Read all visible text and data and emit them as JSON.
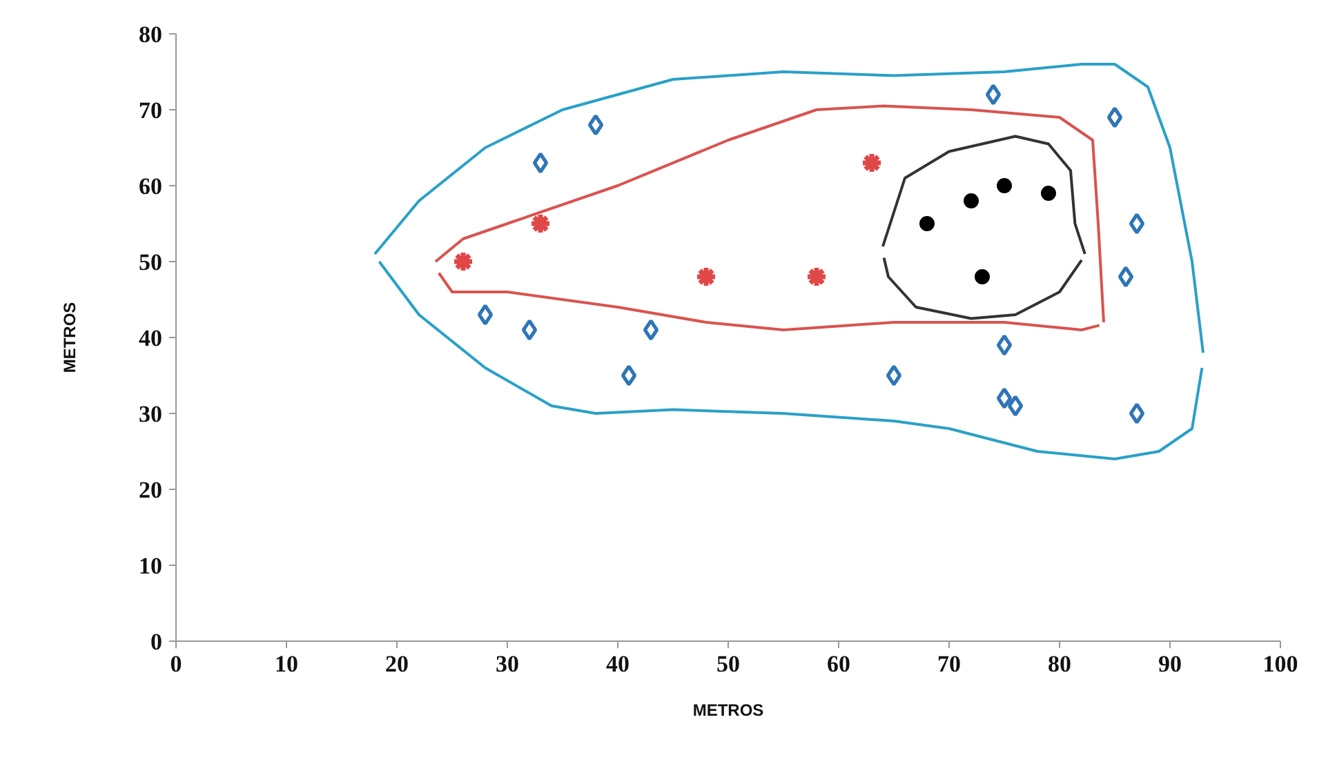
{
  "chart_data": {
    "type": "scatter",
    "xlabel": "METROS",
    "ylabel": "METROS",
    "xlim": [
      0,
      100
    ],
    "ylim": [
      0,
      80
    ],
    "xticks": [
      0,
      10,
      20,
      30,
      40,
      50,
      60,
      70,
      80,
      90,
      100
    ],
    "yticks": [
      0,
      10,
      20,
      30,
      40,
      50,
      60,
      70,
      80
    ],
    "grid": false,
    "series": [
      {
        "type": "line",
        "color": "#2aa0c8",
        "marker": "none",
        "x": [
          18,
          22,
          28,
          35,
          45,
          55,
          65,
          75,
          82,
          85,
          88,
          90,
          92,
          93
        ],
        "values": [
          51,
          58,
          65,
          70,
          74,
          75,
          74.5,
          75,
          76,
          76,
          73,
          65,
          50,
          38
        ]
      },
      {
        "type": "line",
        "color": "#2aa0c8",
        "marker": "none",
        "x": [
          18.4,
          22,
          28,
          34,
          38,
          45,
          55,
          65,
          70,
          78,
          85,
          89,
          92,
          92.9
        ],
        "values": [
          50,
          43,
          36,
          31,
          30,
          30.5,
          30,
          29,
          28,
          25,
          24,
          25,
          28,
          36
        ]
      },
      {
        "type": "line",
        "color": "#d9534f",
        "marker": "none",
        "x": [
          23.5,
          26,
          30,
          40,
          50,
          58,
          64,
          72,
          80,
          83,
          83.5,
          84
        ],
        "values": [
          50,
          53,
          55,
          60,
          66,
          70,
          70.5,
          70,
          69,
          66,
          55,
          42
        ]
      },
      {
        "type": "line",
        "color": "#d9534f",
        "marker": "none",
        "x": [
          23.8,
          25,
          30,
          40,
          48,
          55,
          65,
          75,
          82,
          83.6
        ],
        "values": [
          48.5,
          46,
          46,
          44,
          42,
          41,
          42,
          42,
          41,
          41.6
        ]
      },
      {
        "type": "line",
        "color": "#333333",
        "marker": "none",
        "x": [
          64,
          66,
          70,
          76,
          79,
          81,
          81.4,
          82.3
        ],
        "values": [
          52,
          61,
          64.5,
          66.5,
          65.5,
          62,
          55,
          51
        ]
      },
      {
        "type": "line",
        "color": "#333333",
        "marker": "none",
        "x": [
          64.1,
          64.5,
          67,
          72,
          76,
          80,
          82
        ],
        "values": [
          50.5,
          48,
          44,
          42.5,
          43,
          46,
          50.2
        ]
      },
      {
        "color": "#2e75b6",
        "marker": "diamond",
        "x": [
          28,
          32,
          33,
          38,
          41,
          43,
          65,
          74,
          75,
          75,
          76,
          85,
          86,
          87,
          87
        ],
        "values": [
          43,
          41,
          63,
          68,
          35,
          41,
          35,
          72,
          39,
          32,
          31,
          69,
          48,
          55,
          30
        ]
      },
      {
        "color": "#e04848",
        "marker": "cross",
        "x": [
          26,
          33,
          48,
          58,
          63
        ],
        "values": [
          50,
          55,
          48,
          48,
          63
        ]
      },
      {
        "color": "#000000",
        "marker": "circle",
        "x": [
          68,
          72,
          75,
          79,
          73
        ],
        "values": [
          55,
          58,
          60,
          59,
          48
        ]
      }
    ]
  }
}
